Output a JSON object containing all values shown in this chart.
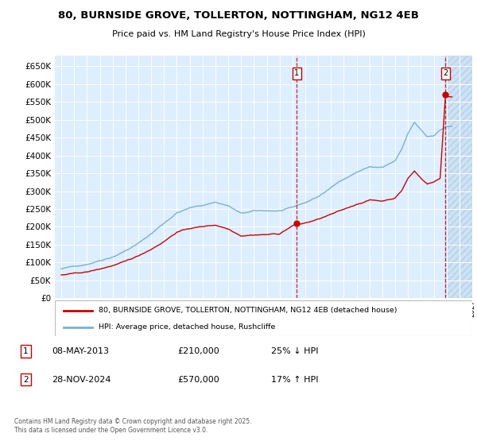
{
  "title_line1": "80, BURNSIDE GROVE, TOLLERTON, NOTTINGHAM, NG12 4EB",
  "title_line2": "Price paid vs. HM Land Registry's House Price Index (HPI)",
  "legend_label1": "80, BURNSIDE GROVE, TOLLERTON, NOTTINGHAM, NG12 4EB (detached house)",
  "legend_label2": "HPI: Average price, detached house, Rushcliffe",
  "sale1_label": "1",
  "sale1_date": "08-MAY-2013",
  "sale1_price": "£210,000",
  "sale1_note": "25% ↓ HPI",
  "sale2_label": "2",
  "sale2_date": "28-NOV-2024",
  "sale2_price": "£570,000",
  "sale2_note": "17% ↑ HPI",
  "footer": "Contains HM Land Registry data © Crown copyright and database right 2025.\nThis data is licensed under the Open Government Licence v3.0.",
  "property_color": "#cc0000",
  "hpi_color": "#7ab0d4",
  "sale1_x": 2013.35,
  "sale1_y": 210000,
  "sale2_x": 2024.91,
  "sale2_y": 570000,
  "ylim": [
    0,
    680000
  ],
  "xlim": [
    1994.5,
    2027.0
  ],
  "plot_bg": "#ddeeff",
  "hatch_color": "#b0c8e8",
  "grid_color": "#ffffff"
}
